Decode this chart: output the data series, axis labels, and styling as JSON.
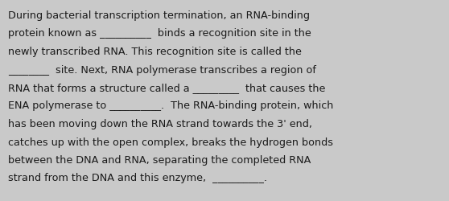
{
  "background_color": "#c9c9c9",
  "text_color": "#1a1a1a",
  "font_size": 9.2,
  "lines": [
    "During bacterial transcription termination, an RNA-binding",
    "protein known as __________  binds a recognition site in the",
    "newly transcribed RNA. This recognition site is called the",
    "________  site. Next, RNA polymerase transcribes a region of",
    "RNA that forms a structure called a _________  that causes the",
    "ENA polymerase to __________.  The RNA-binding protein, which",
    "has been moving down the RNA strand towards the 3' end,",
    "catches up with the open complex, breaks the hydrogen bonds",
    "between the DNA and RNA, separating the completed RNA",
    "strand from the DNA and this enzyme,  __________.  "
  ],
  "figsize": [
    5.58,
    2.51
  ],
  "dpi": 100
}
